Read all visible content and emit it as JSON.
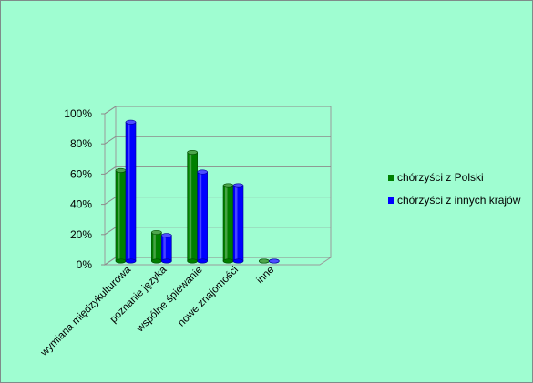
{
  "chart_data": {
    "type": "bar",
    "title": "",
    "xlabel": "",
    "ylabel": "",
    "categories": [
      "wymiana międzykulturowa",
      "poznanie języka",
      "wspólne śpiewanie",
      "nowe znajomości",
      "inne"
    ],
    "series": [
      {
        "name": "chórzyści z Polski",
        "color": "#008000",
        "values": [
          60,
          19,
          72,
          50,
          0
        ]
      },
      {
        "name": "chórzyści z innych krajów",
        "color": "#0000ff",
        "values": [
          92,
          17,
          59,
          50,
          0
        ]
      }
    ],
    "ylim": [
      0,
      100
    ],
    "yticks": [
      "0%",
      "20%",
      "40%",
      "60%",
      "80%",
      "100%"
    ],
    "grid": true,
    "legend_position": "right",
    "background_color": "#9ffdd1"
  }
}
